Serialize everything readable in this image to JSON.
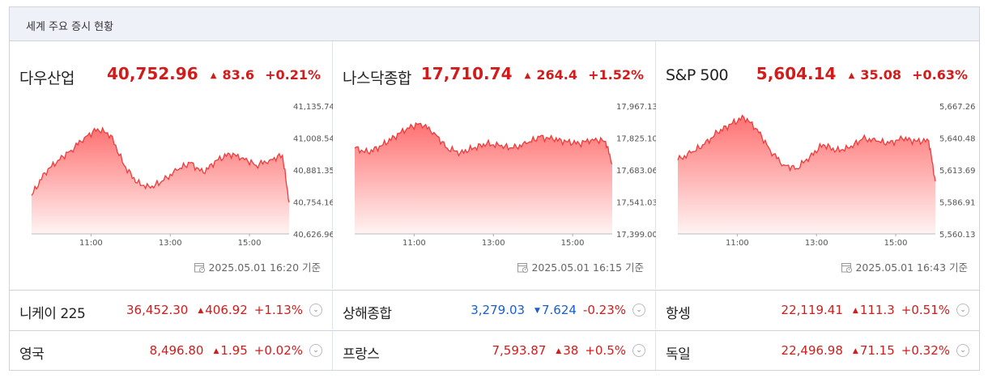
{
  "header": {
    "title": "세계 주요 증시 현황"
  },
  "panels": [
    {
      "name": "다우산업",
      "value": "40,752.96",
      "direction": "up",
      "arrow": "▲",
      "change": "83.6",
      "percent": "+0.21%",
      "timestamp": "2025.05.01 16:20 기준",
      "icon": "calendar-icon",
      "chart_data": {
        "type": "area",
        "yticks": [
          "41,135.74",
          "41,008.54",
          "40,881.35",
          "40,754.16",
          "40,626.96"
        ],
        "ylim": [
          40626.96,
          41135.74
        ],
        "xticks": [
          "11:00",
          "13:00",
          "15:00"
        ],
        "xlim": [
          "09:30",
          "16:00"
        ],
        "x": [
          "09:30",
          "09:50",
          "10:10",
          "10:30",
          "10:50",
          "11:10",
          "11:30",
          "11:50",
          "12:10",
          "12:30",
          "12:50",
          "13:10",
          "13:30",
          "13:50",
          "14:10",
          "14:30",
          "14:50",
          "15:10",
          "15:30",
          "15:50",
          "16:00"
        ],
        "y": [
          40780,
          40870,
          40920,
          40960,
          41010,
          41045,
          41020,
          40900,
          40830,
          40810,
          40840,
          40880,
          40910,
          40870,
          40920,
          40945,
          40930,
          40900,
          40920,
          40940,
          40752.96
        ]
      }
    },
    {
      "name": "나스닥종합",
      "value": "17,710.74",
      "direction": "up",
      "arrow": "▲",
      "change": "264.4",
      "percent": "+1.52%",
      "timestamp": "2025.05.01 16:15 기준",
      "icon": "calendar-icon",
      "chart_data": {
        "type": "area",
        "yticks": [
          "17,967.13",
          "17,825.10",
          "17,683.06",
          "17,541.03",
          "17,399.00"
        ],
        "ylim": [
          17399.0,
          17967.13
        ],
        "xticks": [
          "11:00",
          "13:00",
          "15:00"
        ],
        "xlim": [
          "09:30",
          "16:00"
        ],
        "x": [
          "09:30",
          "09:50",
          "10:10",
          "10:30",
          "10:50",
          "11:10",
          "11:30",
          "11:50",
          "12:10",
          "12:30",
          "12:50",
          "13:10",
          "13:30",
          "13:50",
          "14:10",
          "14:30",
          "14:50",
          "15:10",
          "15:30",
          "15:50",
          "16:00"
        ],
        "y": [
          17780,
          17760,
          17790,
          17830,
          17870,
          17890,
          17850,
          17780,
          17760,
          17780,
          17800,
          17790,
          17780,
          17800,
          17830,
          17820,
          17810,
          17800,
          17820,
          17810,
          17710.74
        ]
      }
    },
    {
      "name": "S&P 500",
      "value": "5,604.14",
      "direction": "up",
      "arrow": "▲",
      "change": "35.08",
      "percent": "+0.63%",
      "timestamp": "2025.05.01 16:43 기준",
      "icon": "calendar-icon",
      "chart_data": {
        "type": "area",
        "yticks": [
          "5,667.26",
          "5,640.48",
          "5,613.69",
          "5,586.91",
          "5,560.13"
        ],
        "ylim": [
          5560.13,
          5667.26
        ],
        "xticks": [
          "11:00",
          "13:00",
          "15:00"
        ],
        "xlim": [
          "09:30",
          "16:00"
        ],
        "x": [
          "09:30",
          "09:50",
          "10:10",
          "10:30",
          "10:50",
          "11:10",
          "11:30",
          "11:50",
          "12:10",
          "12:30",
          "12:50",
          "13:10",
          "13:30",
          "13:50",
          "14:10",
          "14:30",
          "14:50",
          "15:10",
          "15:30",
          "15:50",
          "16:00"
        ],
        "y": [
          5622,
          5628,
          5635,
          5645,
          5652,
          5658,
          5648,
          5630,
          5618,
          5615,
          5625,
          5635,
          5630,
          5632,
          5640,
          5638,
          5636,
          5640,
          5638,
          5638,
          5604.14
        ]
      }
    }
  ],
  "rows": [
    [
      {
        "name": "니케이 225",
        "value": "36,452.30",
        "direction": "up",
        "arrow": "▲",
        "change": "406.92",
        "percent": "+1.13%"
      },
      {
        "name": "상해종합",
        "value": "3,279.03",
        "direction": "down",
        "arrow": "▼",
        "change": "7.624",
        "percent": "-0.23%"
      },
      {
        "name": "항셍",
        "value": "22,119.41",
        "direction": "up",
        "arrow": "▲",
        "change": "111.3",
        "percent": "+0.51%"
      }
    ],
    [
      {
        "name": "영국",
        "value": "8,496.80",
        "direction": "up",
        "arrow": "▲",
        "change": "1.95",
        "percent": "+0.02%"
      },
      {
        "name": "프랑스",
        "value": "7,593.87",
        "direction": "up",
        "arrow": "▲",
        "change": "38",
        "percent": "+0.5%"
      },
      {
        "name": "독일",
        "value": "22,496.98",
        "direction": "up",
        "arrow": "▲",
        "change": "71.15",
        "percent": "+0.32%"
      }
    ]
  ],
  "colors": {
    "up": "#d21c1c",
    "down": "#1a5fcf",
    "line": "#f03a3a",
    "fill": "#ff6a6a"
  },
  "expand_icon": "chevron-down-icon"
}
